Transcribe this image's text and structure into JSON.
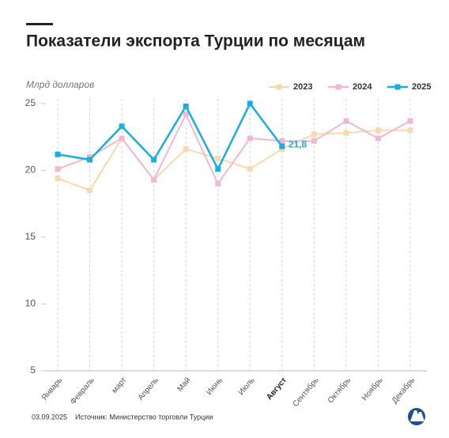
{
  "chart_data": {
    "type": "line",
    "title": "Показатели экспорта Турции по месяцам",
    "y_label": "Млрд долларов",
    "date": "03.09.2025",
    "source": "Источник: Министерство торговли Турции",
    "categories": [
      "Январь",
      "Февраль",
      "март",
      "Апрель",
      "Май",
      "Июнь",
      "Июль",
      "Август",
      "Сентябрь",
      "Октябрь",
      "Ноябрь",
      "Декабрь"
    ],
    "series": [
      {
        "name": "2023",
        "color": "#f8d9b0",
        "values": [
          19.4,
          18.5,
          22.4,
          19.3,
          21.6,
          20.9,
          20.1,
          21.6,
          22.7,
          22.8,
          23.0,
          23.0
        ]
      },
      {
        "name": "2024",
        "color": "#f0b9d3",
        "values": [
          20.1,
          21.0,
          22.4,
          19.3,
          24.2,
          19.0,
          22.4,
          22.2,
          22.2,
          23.7,
          22.4,
          23.7
        ]
      },
      {
        "name": "2025",
        "color": "#1aaedf",
        "values": [
          21.2,
          20.8,
          23.3,
          20.8,
          24.8,
          20.1,
          25.0,
          21.8,
          null,
          null,
          null,
          null
        ],
        "value_labels": [
          null,
          null,
          null,
          null,
          null,
          null,
          null,
          "21,8",
          null,
          null,
          null,
          null
        ]
      }
    ],
    "ylim": [
      5,
      25
    ],
    "yticks": [
      5,
      10,
      15,
      20,
      25
    ],
    "grid": true,
    "legend": "top-right"
  }
}
